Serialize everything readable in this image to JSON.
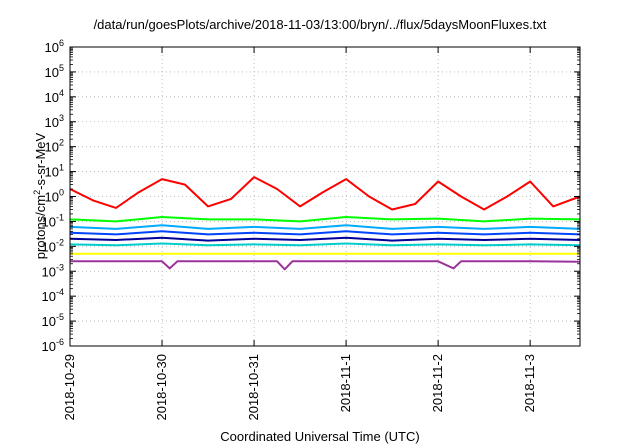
{
  "chart_data": {
    "type": "line",
    "title": "/data/run/goesPlots/archive/2018-11-03/13:00/bryn/../flux/5daysMoonFluxes.txt",
    "ylabel_prefix": "protons/cm",
    "ylabel_sup": "2",
    "ylabel_suffix": "-s-sr-MeV",
    "xlabel": "Coordinated Universal Time (UTC)",
    "yscale": "log",
    "ylim": [
      1e-06,
      1000000.0
    ],
    "xlim": [
      "2018-10-29T00:00",
      "2018-11-03T13:00"
    ],
    "x_ticks": [
      "2018-10-29",
      "2018-10-30",
      "2018-10-31",
      "2018-11-1",
      "2018-11-2",
      "2018-11-3"
    ],
    "y_ticks": [
      -6,
      -5,
      -4,
      -3,
      -2,
      -1,
      0,
      1,
      2,
      3,
      4,
      5,
      6
    ],
    "y_tick_base": "10",
    "grid": true,
    "series": [
      {
        "color": "#ff0000",
        "x": [
          "2018-10-29T00:00",
          "2018-10-29T06:00",
          "2018-10-29T12:00",
          "2018-10-29T18:00",
          "2018-10-30T00:00",
          "2018-10-30T06:00",
          "2018-10-30T12:00",
          "2018-10-30T18:00",
          "2018-10-31T00:00",
          "2018-10-31T06:00",
          "2018-10-31T12:00",
          "2018-10-31T18:00",
          "2018-11-01T00:00",
          "2018-11-01T06:00",
          "2018-11-01T12:00",
          "2018-11-01T18:00",
          "2018-11-02T00:00",
          "2018-11-02T06:00",
          "2018-11-02T12:00",
          "2018-11-02T18:00",
          "2018-11-03T00:00",
          "2018-11-03T06:00",
          "2018-11-03T13:00"
        ],
        "values": [
          2,
          0.7,
          0.35,
          1.5,
          5,
          3,
          0.4,
          0.8,
          6,
          2,
          0.4,
          1.5,
          5,
          1,
          0.3,
          0.5,
          4,
          1,
          0.3,
          1,
          4,
          0.4,
          1
        ]
      },
      {
        "color": "#00ff00",
        "x": [
          "2018-10-29T00:00",
          "2018-10-29T12:00",
          "2018-10-30T00:00",
          "2018-10-30T12:00",
          "2018-10-31T00:00",
          "2018-10-31T12:00",
          "2018-11-01T00:00",
          "2018-11-01T12:00",
          "2018-11-02T00:00",
          "2018-11-02T12:00",
          "2018-11-03T00:00",
          "2018-11-03T13:00"
        ],
        "values": [
          0.12,
          0.1,
          0.15,
          0.12,
          0.12,
          0.1,
          0.15,
          0.12,
          0.13,
          0.1,
          0.13,
          0.12
        ]
      },
      {
        "color": "#00aaff",
        "x": [
          "2018-10-29T00:00",
          "2018-10-29T12:00",
          "2018-10-30T00:00",
          "2018-10-30T12:00",
          "2018-10-31T00:00",
          "2018-10-31T12:00",
          "2018-11-01T00:00",
          "2018-11-01T12:00",
          "2018-11-02T00:00",
          "2018-11-02T12:00",
          "2018-11-03T00:00",
          "2018-11-03T13:00"
        ],
        "values": [
          0.06,
          0.05,
          0.07,
          0.05,
          0.06,
          0.05,
          0.07,
          0.05,
          0.06,
          0.05,
          0.06,
          0.05
        ]
      },
      {
        "color": "#0044ff",
        "x": [
          "2018-10-29T00:00",
          "2018-10-29T12:00",
          "2018-10-30T00:00",
          "2018-10-30T12:00",
          "2018-10-31T00:00",
          "2018-10-31T12:00",
          "2018-11-01T00:00",
          "2018-11-01T12:00",
          "2018-11-02T00:00",
          "2018-11-02T12:00",
          "2018-11-03T00:00",
          "2018-11-03T13:00"
        ],
        "values": [
          0.035,
          0.03,
          0.04,
          0.03,
          0.035,
          0.03,
          0.04,
          0.03,
          0.035,
          0.03,
          0.035,
          0.03
        ]
      },
      {
        "color": "#000099",
        "x": [
          "2018-10-29T00:00",
          "2018-10-29T12:00",
          "2018-10-30T00:00",
          "2018-10-30T12:00",
          "2018-10-31T00:00",
          "2018-10-31T12:00",
          "2018-11-01T00:00",
          "2018-11-01T12:00",
          "2018-11-02T00:00",
          "2018-11-02T12:00",
          "2018-11-03T00:00",
          "2018-11-03T13:00"
        ],
        "values": [
          0.02,
          0.018,
          0.022,
          0.017,
          0.02,
          0.018,
          0.022,
          0.017,
          0.02,
          0.018,
          0.02,
          0.018
        ]
      },
      {
        "color": "#00cccc",
        "x": [
          "2018-10-29T00:00",
          "2018-10-29T12:00",
          "2018-10-30T00:00",
          "2018-10-30T12:00",
          "2018-10-31T00:00",
          "2018-10-31T12:00",
          "2018-11-01T00:00",
          "2018-11-01T12:00",
          "2018-11-02T00:00",
          "2018-11-02T12:00",
          "2018-11-03T00:00",
          "2018-11-03T13:00"
        ],
        "values": [
          0.012,
          0.011,
          0.013,
          0.011,
          0.012,
          0.011,
          0.013,
          0.011,
          0.012,
          0.011,
          0.012,
          0.011
        ]
      },
      {
        "color": "#ffff00",
        "x": [
          "2018-10-29T00:00",
          "2018-10-30T00:00",
          "2018-10-31T00:00",
          "2018-11-01T00:00",
          "2018-11-02T00:00",
          "2018-11-03T00:00",
          "2018-11-03T13:00"
        ],
        "values": [
          0.005,
          0.005,
          0.005,
          0.005,
          0.005,
          0.005,
          0.005
        ]
      },
      {
        "color": "#993399",
        "x": [
          "2018-10-29T00:00",
          "2018-10-30T00:00",
          "2018-10-30T02:00",
          "2018-10-30T04:00",
          "2018-10-31T00:00",
          "2018-10-31T06:00",
          "2018-10-31T08:00",
          "2018-10-31T10:00",
          "2018-11-01T00:00",
          "2018-11-02T00:00",
          "2018-11-02T04:00",
          "2018-11-02T06:00",
          "2018-11-02T08:00",
          "2018-11-03T00:00",
          "2018-11-03T13:00"
        ],
        "values": [
          0.0025,
          0.0025,
          0.0013,
          0.0025,
          0.0025,
          0.0025,
          0.0012,
          0.0025,
          0.0025,
          0.0025,
          0.0013,
          0.0025,
          0.0025,
          0.0025,
          0.0024
        ]
      }
    ]
  }
}
